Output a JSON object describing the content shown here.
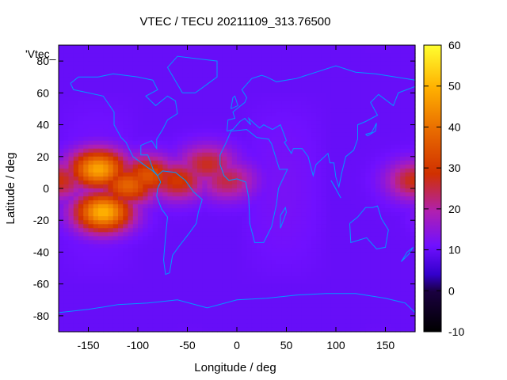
{
  "chart_data": {
    "type": "heatmap",
    "title": "VTEC / TECU 20211109_313.76500",
    "xlabel": "Longitude / deg",
    "ylabel": "Latitude / deg",
    "key_label": "'Vtec_",
    "xlim": [
      -180,
      180
    ],
    "ylim": [
      -90,
      90
    ],
    "x_ticks": [
      -150,
      -100,
      -50,
      0,
      50,
      100,
      150
    ],
    "y_ticks": [
      -80,
      -60,
      -40,
      -20,
      0,
      20,
      40,
      60,
      80
    ],
    "colorbar": {
      "range": [
        -10,
        60
      ],
      "ticks": [
        -10,
        0,
        10,
        20,
        30,
        40,
        50,
        60
      ],
      "palette": "black-blue-purple-red-orange-yellow"
    },
    "background_level": 10,
    "hotspots": [
      {
        "lon": -140,
        "lat": 12,
        "value": 48
      },
      {
        "lon": -135,
        "lat": -15,
        "value": 50
      },
      {
        "lon": -110,
        "lat": 2,
        "value": 38
      },
      {
        "lon": -90,
        "lat": 8,
        "value": 35
      },
      {
        "lon": -60,
        "lat": 5,
        "value": 30
      },
      {
        "lon": -30,
        "lat": 15,
        "value": 27
      },
      {
        "lon": -10,
        "lat": 5,
        "value": 25
      },
      {
        "lon": 180,
        "lat": 5,
        "value": 28
      }
    ],
    "coastline_color": "#0099ff"
  }
}
